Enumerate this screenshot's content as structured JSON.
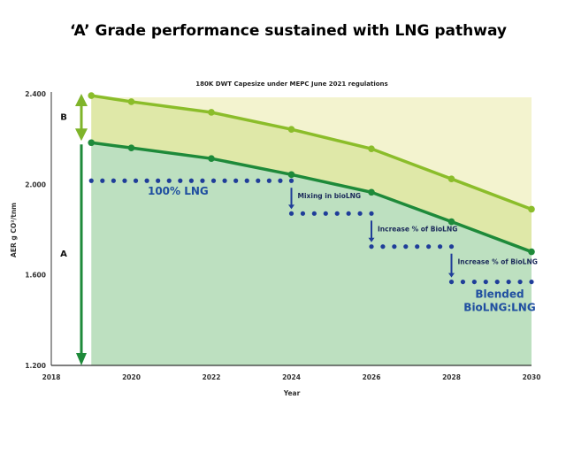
{
  "chart_data": {
    "type": "area",
    "title": "‘A’ Grade performance sustained with LNG pathway",
    "subtitle": "180K DWT Capesize under MEPC June 2021 regulations",
    "xlabel": "Year",
    "ylabel": "AER g CO²/tnm",
    "xlim": [
      2018,
      2030
    ],
    "ylim": [
      1.2,
      2.4
    ],
    "x_ticks": [
      "2018",
      "2020",
      "2022",
      "2024",
      "2026",
      "2028",
      "2030"
    ],
    "y_ticks": [
      "1.200",
      "1.600",
      "2.000",
      "2.400"
    ],
    "grid": false,
    "series": [
      {
        "x": [
          2019,
          2020,
          2022,
          2024,
          2026,
          2028,
          2030
        ],
        "values": [
          2.392,
          2.365,
          2.318,
          2.243,
          2.157,
          2.024,
          1.89
        ],
        "color": "#8bbd2a"
      },
      {
        "x": [
          2019,
          2020,
          2022,
          2024,
          2026,
          2028,
          2030
        ],
        "values": [
          2.184,
          2.161,
          2.114,
          2.043,
          1.965,
          1.835,
          1.702
        ],
        "color": "#1e8a3a"
      }
    ],
    "fuel_steps": [
      {
        "from": 2019,
        "to": 2024,
        "value": 2.016,
        "label": "100% LNG"
      },
      {
        "from": 2024,
        "to": 2026,
        "value": 1.871,
        "label": "Mixing in bioLNG"
      },
      {
        "from": 2026,
        "to": 2028,
        "value": 1.725,
        "label": "Increase % of BioLNG"
      },
      {
        "from": 2028,
        "to": 2030,
        "value": 1.569,
        "label": "Increase % of BioLNG"
      }
    ],
    "final_label": [
      "Blended",
      "BioLNG:LNG"
    ],
    "grade_bands": [
      {
        "label": "B",
        "from": 2.4,
        "to": 2.184
      },
      {
        "label": "A",
        "from": 2.184,
        "to": 1.2
      }
    ],
    "colors": {
      "band_top": "#f3f3cf",
      "band_b": "#dfe8a8",
      "band_a": "#bde0c0",
      "dots": "#1f3d99",
      "arrow_b": "#7fb42a",
      "arrow_a": "#1e8a3a"
    }
  }
}
